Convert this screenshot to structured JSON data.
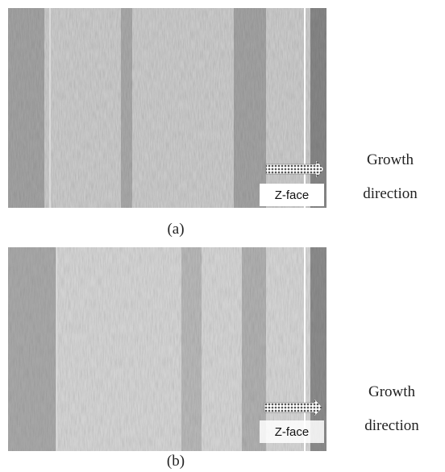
{
  "panels": [
    {
      "label": "(a)",
      "face_label": "Z-face",
      "annotation": [
        "Growth",
        "direction"
      ]
    },
    {
      "label": "(b)",
      "face_label": "Z-face",
      "annotation": [
        "Growth",
        "direction"
      ]
    }
  ]
}
